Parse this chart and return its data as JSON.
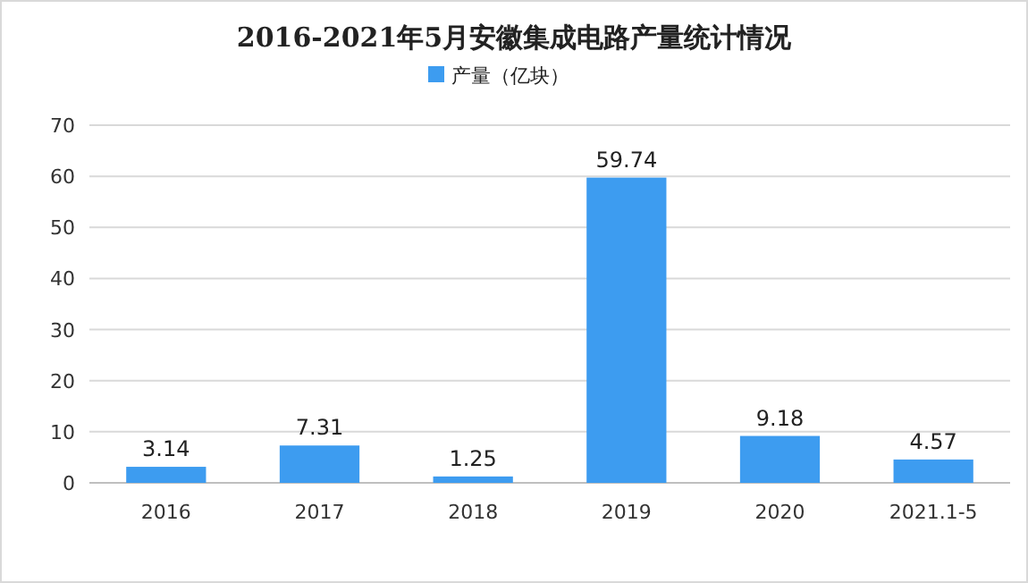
{
  "chart_data": {
    "type": "bar",
    "title": "2016-2021年5月安徽集成电路产量统计情况",
    "categories": [
      "2016",
      "2017",
      "2018",
      "2019",
      "2020",
      "2021.1-5"
    ],
    "series": [
      {
        "name": "产量（亿块）",
        "color": "#3d9cf0",
        "values": [
          3.14,
          7.31,
          1.25,
          59.74,
          9.18,
          4.57
        ]
      }
    ],
    "ylim": [
      0,
      70
    ],
    "yticks": [
      0,
      10,
      20,
      30,
      40,
      50,
      60,
      70
    ],
    "grid": "y",
    "legend": "top",
    "data_labels": true
  }
}
